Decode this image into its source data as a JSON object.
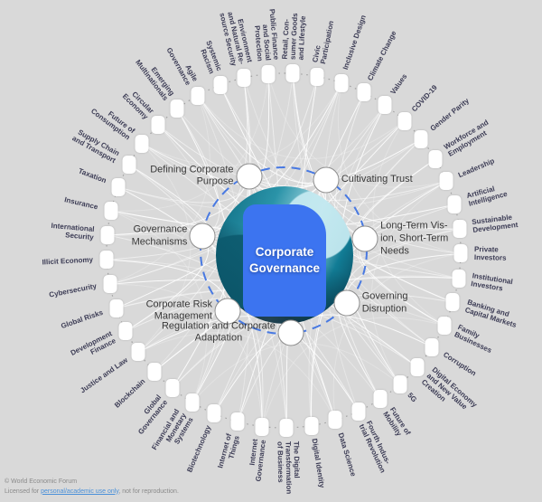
{
  "diagram": {
    "center": {
      "label": "Corporate\nGovernance"
    },
    "inner_ring": [
      {
        "label": "Defining Corporate\nPurpose",
        "angle": -115,
        "side": "left",
        "align": "right"
      },
      {
        "label": "Cultivating Trust",
        "angle": -59,
        "side": "right",
        "align": "left"
      },
      {
        "label": "Long-Term Vis-\nion, Short-Term\nNeeds",
        "angle": -8,
        "side": "right",
        "align": "left"
      },
      {
        "label": "Governing\nDisruption",
        "angle": 40,
        "side": "right",
        "align": "left"
      },
      {
        "label": "Regulation and Corporate\nAdaptation",
        "angle": 85,
        "side": "left",
        "align": "center"
      },
      {
        "label": "Corporate Risk\nManagement",
        "angle": 133,
        "side": "left",
        "align": "right"
      },
      {
        "label": "Governance\nMechanisms",
        "angle": 190,
        "side": "left",
        "align": "right"
      }
    ],
    "outer_ring": {
      "start_angle": -119,
      "step": 8,
      "items": [
        {
          "label": "Agile\nGovernance"
        },
        {
          "label": "Systemic\nRacism"
        },
        {
          "label": "Environment\nand Natural Re-\nsource Security"
        },
        {
          "label": "Public Finance\nand Social\nProtection"
        },
        {
          "label": "Retail, Con-\nsumer Goods\nand Lifestyle"
        },
        {
          "label": "Civic\nParticipation"
        },
        {
          "label": "Inclusive Design"
        },
        {
          "label": "Climate Change"
        },
        {
          "label": "Values"
        },
        {
          "label": "COVID-19"
        },
        {
          "label": "Gender Parity"
        },
        {
          "label": "Workforce and\nEmployment"
        },
        {
          "label": "Leadership"
        },
        {
          "label": "Artificial\nIntelligence"
        },
        {
          "label": "Sustainable\nDevelopment"
        },
        {
          "label": "Private\nInvestors"
        },
        {
          "label": "Institutional\nInvestors"
        },
        {
          "label": "Banking and\nCapital Markets"
        },
        {
          "label": "Family\nBusinesses"
        },
        {
          "label": "Corruption"
        },
        {
          "label": "Digital Economy\nand New Value\nCreation"
        },
        {
          "label": "5G"
        },
        {
          "label": "Future of\nMobility"
        },
        {
          "label": "Fourth Indus-\ntrial Revolution"
        },
        {
          "label": "Data Science"
        },
        {
          "label": "Digital Identity"
        },
        {
          "label": "The Digital\nTransformation\nof Business"
        },
        {
          "label": "Internet\nGovernance"
        },
        {
          "label": "Internet of\nThings"
        },
        {
          "label": "Biotechnology"
        },
        {
          "label": "Financial and\nMonetary\nSystems"
        },
        {
          "label": "Global\nGovernance"
        },
        {
          "label": "Blockchain"
        },
        {
          "label": "Justice and Law"
        },
        {
          "label": "Development\nFinance"
        },
        {
          "label": "Global Risks"
        },
        {
          "label": "Cybersecurity"
        },
        {
          "label": "Illicit Economy"
        },
        {
          "label": "International\nSecurity"
        },
        {
          "label": "Insurance"
        },
        {
          "label": "Taxation"
        },
        {
          "label": "Supply Chain\nand Transport"
        },
        {
          "label": "Future of\nConsumption"
        },
        {
          "label": "Circular\nEconomy"
        },
        {
          "label": "Emerging\nMultinationals"
        }
      ]
    }
  },
  "footer": {
    "copyright": "© World Economic Forum",
    "license_prefix": "Licensed for ",
    "license_link": "personal/academic use only",
    "license_suffix": ", not for reproduction."
  },
  "colors": {
    "background": "#d9d9d9",
    "center_box": "#3c74f0",
    "dashed_ring": "#4879e2",
    "dotted_ring": "#a3a3a3",
    "web_line": "#ffffff",
    "outer_label_text": "#3c3c55",
    "inner_label_text": "#383838"
  }
}
